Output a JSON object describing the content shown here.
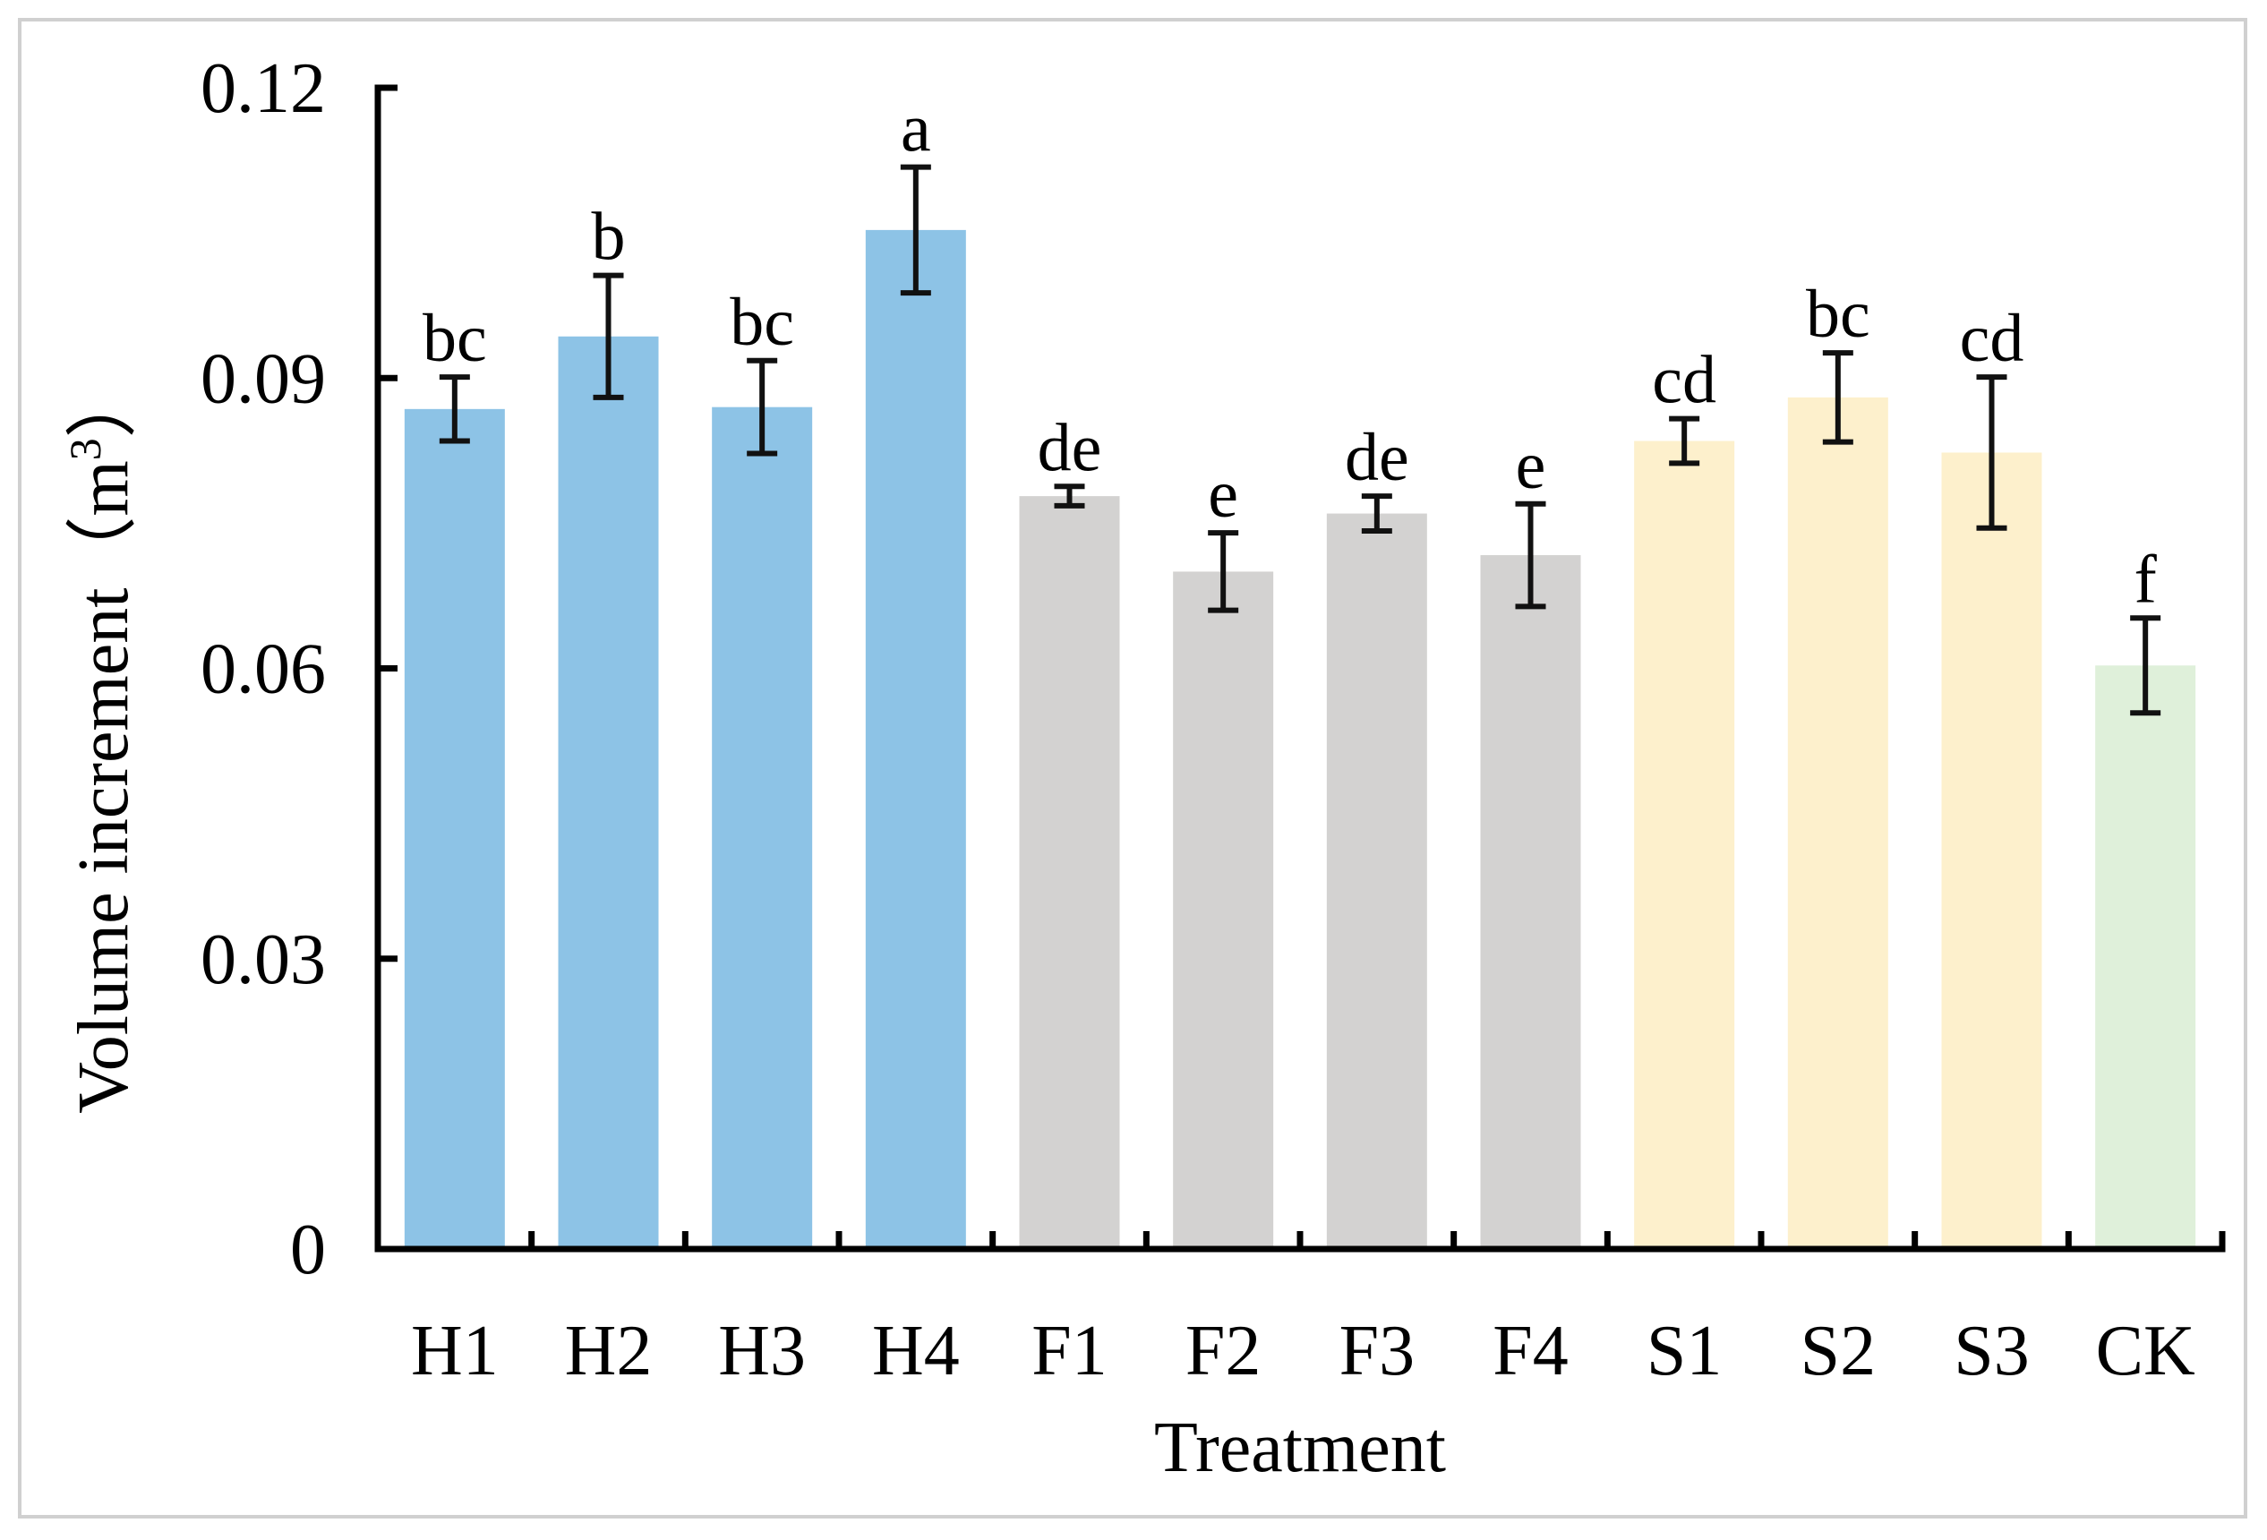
{
  "chart_data": {
    "type": "bar",
    "title": "",
    "xlabel": "Treatment",
    "ylabel": "Volume increment（m",
    "ylabel_superscript": "3",
    "ylabel_suffix": "）",
    "ylim": [
      0,
      0.12
    ],
    "yticks": [
      "0",
      "0.03",
      "0.06",
      "0.09",
      "0.12"
    ],
    "ytick_values": [
      0,
      0.03,
      0.06,
      0.09,
      0.12
    ],
    "grid": false,
    "legend": "none",
    "categories": [
      "H1",
      "H2",
      "H3",
      "H4",
      "F1",
      "F2",
      "F3",
      "F4",
      "S1",
      "S2",
      "S3",
      "CK"
    ],
    "values": [
      0.0868,
      0.0943,
      0.087,
      0.1053,
      0.0778,
      0.07,
      0.076,
      0.0717,
      0.0835,
      0.088,
      0.0823,
      0.0603
    ],
    "errors": [
      0.0033,
      0.0063,
      0.0048,
      0.0065,
      0.001,
      0.004,
      0.0018,
      0.0053,
      0.0023,
      0.0046,
      0.0078,
      0.0049
    ],
    "significance_letters": [
      "bc",
      "b",
      "bc",
      "a",
      "de",
      "e",
      "de",
      "e",
      "cd",
      "bc",
      "cd",
      "f"
    ],
    "bar_colors": [
      "#8dc3e6",
      "#8dc3e6",
      "#8dc3e6",
      "#8dc3e6",
      "#d3d2d1",
      "#d3d2d1",
      "#d3d2d1",
      "#d3d2d1",
      "#fdf0cc",
      "#fdf0cc",
      "#fdf0cc",
      "#dff0da"
    ]
  }
}
